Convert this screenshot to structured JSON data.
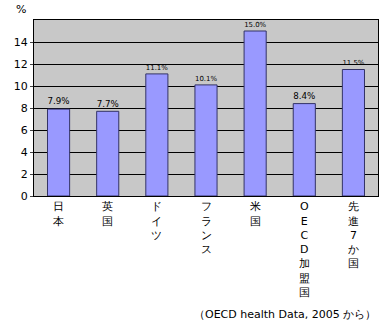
{
  "chart_data": {
    "type": "bar",
    "categories": [
      "日本",
      "英国",
      "ドイツ",
      "フランス",
      "米国",
      "OECD加盟国",
      "先進7か国"
    ],
    "values": [
      7.9,
      7.7,
      11.1,
      10.1,
      15.0,
      8.4,
      11.5
    ],
    "value_labels": [
      "7.9%",
      "7.7%",
      "11.1%",
      "10.1%",
      "15.0%",
      "8.4%",
      "11.5%"
    ],
    "data_labels": true,
    "y_label": "%",
    "annotations": [
      "（OECD health Data, 2005 から）"
    ],
    "color": "#9999ff",
    "ylim": [
      0,
      16
    ],
    "yticks": [
      0,
      2,
      4,
      6,
      8,
      10,
      12,
      14
    ],
    "grid": true
  }
}
